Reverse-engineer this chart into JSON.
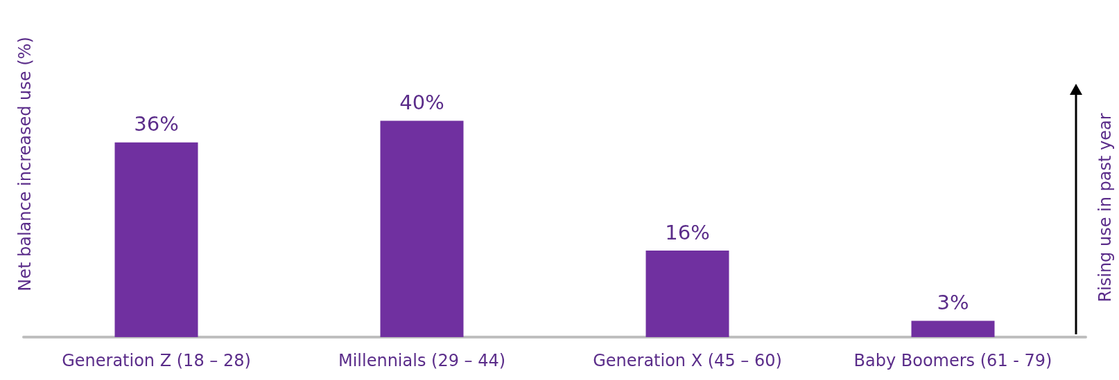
{
  "chart_data": {
    "type": "bar",
    "ylabel": "Net balance increased use (%)",
    "categories": [
      "Generation Z (18 – 28)",
      "Millennials (29 – 44)",
      "Generation X (45 – 60)",
      "Baby Boomers (61 - 79)"
    ],
    "values": [
      36,
      40,
      16,
      3
    ],
    "color": "#7030a0",
    "value_labels": [
      "36%",
      "40%",
      "16%",
      "3%"
    ],
    "annotations": [
      "Rising use in past year"
    ],
    "tick_labels": "x"
  }
}
